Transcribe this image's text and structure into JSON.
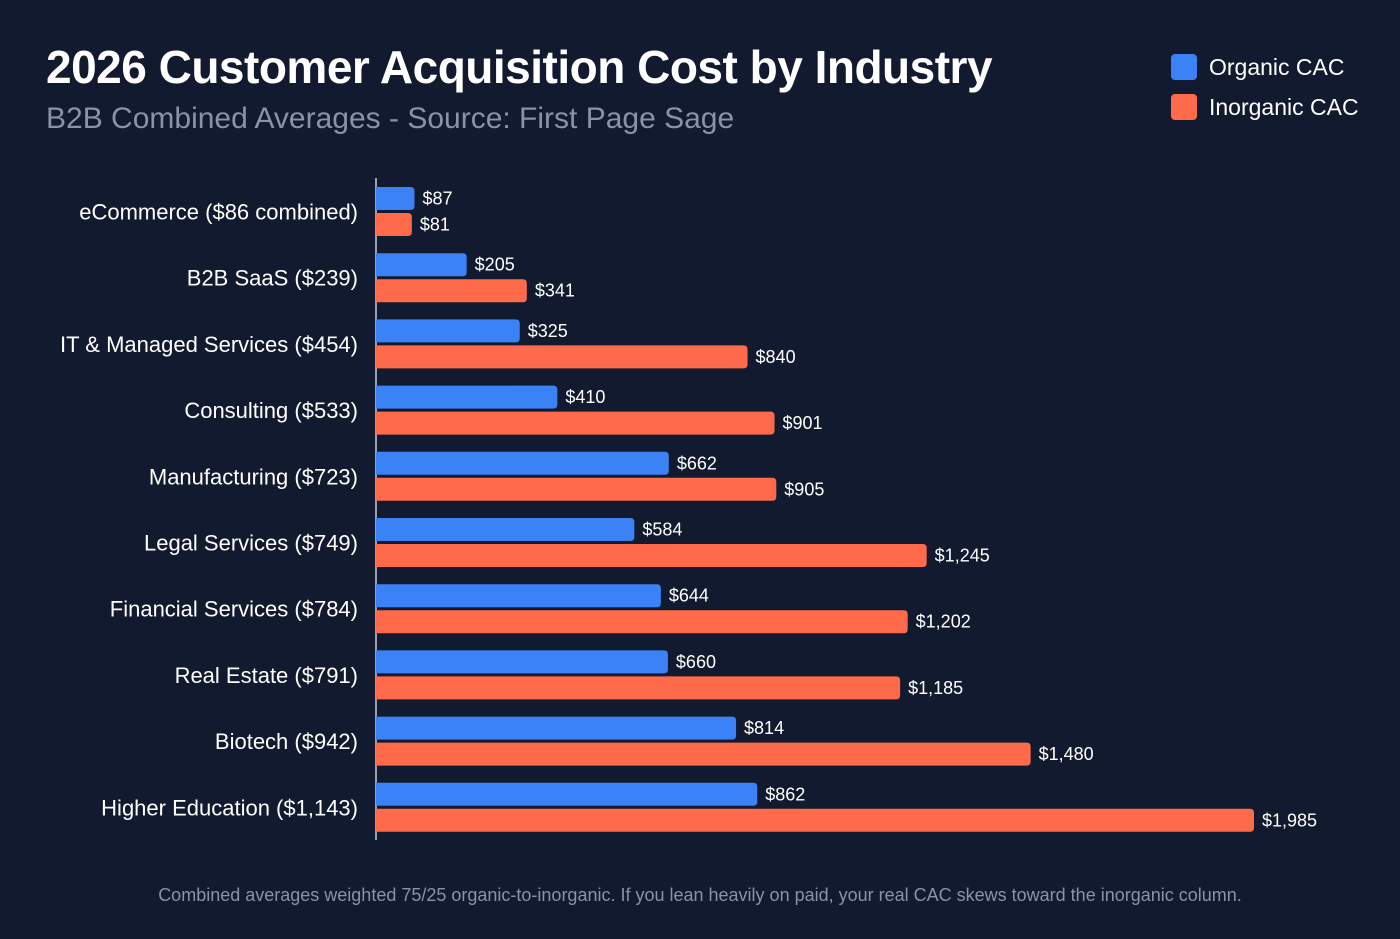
{
  "chart_data": {
    "type": "bar",
    "orientation": "horizontal",
    "title": "2026 Customer Acquisition Cost by Industry",
    "subtitle": "B2B Combined Averages - Source: First Page Sage",
    "categories": [
      "eCommerce ($86 combined)",
      "B2B SaaS ($239)",
      "IT & Managed Services ($454)",
      "Consulting ($533)",
      "Manufacturing ($723)",
      "Legal Services ($749)",
      "Financial Services ($784)",
      "Real Estate ($791)",
      "Biotech ($942)",
      "Higher Education ($1,143)"
    ],
    "series": [
      {
        "name": "Organic CAC",
        "color": "#3b82f6",
        "values": [
          87,
          205,
          325,
          410,
          662,
          584,
          644,
          660,
          814,
          862
        ],
        "labels": [
          "$87",
          "$205",
          "$325",
          "$410",
          "$662",
          "$584",
          "$644",
          "$660",
          "$814",
          "$862"
        ]
      },
      {
        "name": "Inorganic CAC",
        "color": "#ff6b4a",
        "values": [
          81,
          341,
          840,
          901,
          905,
          1245,
          1202,
          1185,
          1480,
          1985
        ],
        "labels": [
          "$81",
          "$341",
          "$840",
          "$901",
          "$905",
          "$1,245",
          "$1,202",
          "$1,185",
          "$1,480",
          "$1,985"
        ]
      }
    ],
    "xlim": [
      0,
      2000
    ],
    "xlabel": "",
    "ylabel": "",
    "grid": false,
    "legend_position": "top-right"
  },
  "colors": {
    "background": "#111a2e",
    "organic": "#3b82f6",
    "inorganic": "#ff6b4a",
    "axis": "#c8ced8",
    "muted_text": "#8893a8"
  },
  "footnote": "Combined averages weighted 75/25 organic-to-inorganic. If you lean heavily on paid, your real CAC skews toward the inorganic column."
}
